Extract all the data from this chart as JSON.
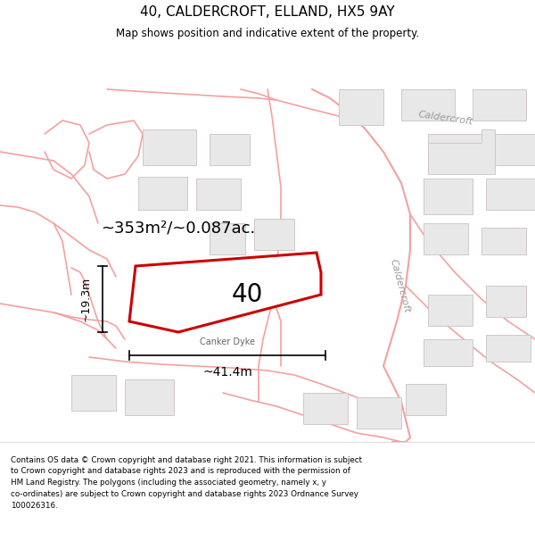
{
  "title": "40, CALDERCROFT, ELLAND, HX5 9AY",
  "subtitle": "Map shows position and indicative extent of the property.",
  "footer": "Contains OS data © Crown copyright and database right 2021. This information is subject\nto Crown copyright and database rights 2023 and is reproduced with the permission of\nHM Land Registry. The polygons (including the associated geometry, namely x, y\nco-ordinates) are subject to Crown copyright and database rights 2023 Ordnance Survey\n100026316.",
  "area_label": "~353m²/~0.087ac.",
  "number_label": "40",
  "dim_height": "~19.3m",
  "dim_width": "~41.4m",
  "street_label": "Canker Dyke",
  "road_label_top": "Caldercroft",
  "road_label_mid": "Caldercroft",
  "background_color": "#ffffff",
  "road_line_color": "#f5a0a0",
  "road_outline_color": "#f0c0c0",
  "building_fill": "#e8e8e8",
  "building_edge": "#d0c8c8",
  "plot_color": "#cc0000",
  "plot_fill": "#ffffff",
  "dim_color": "#333333",
  "annotation_color": "#888888"
}
